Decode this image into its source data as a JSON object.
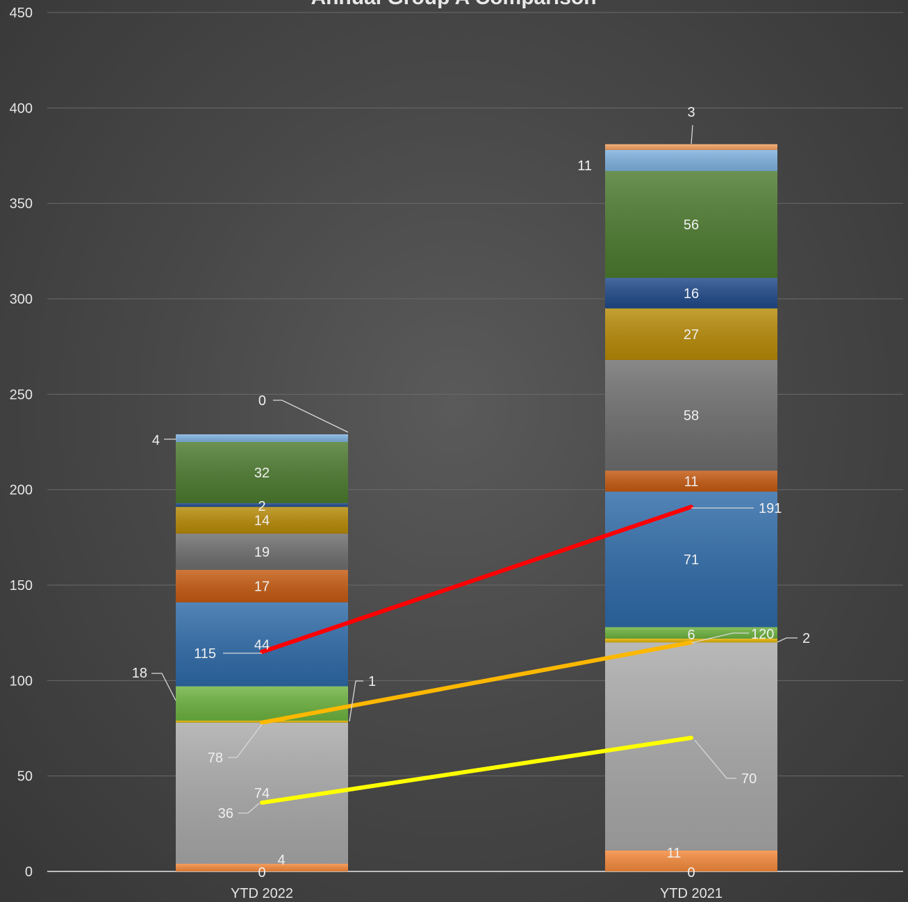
{
  "chart_data": {
    "type": "bar",
    "stacked": true,
    "title": "Annual Group A Comparison",
    "categories": [
      "YTD 2022",
      "YTD 2021"
    ],
    "ylim": [
      0,
      450
    ],
    "yticks": [
      0,
      50,
      100,
      150,
      200,
      250,
      300,
      350,
      400,
      450
    ],
    "grid": true,
    "series": [
      {
        "values": [
          0,
          0
        ],
        "color": "#e8792a"
      },
      {
        "values": [
          4,
          11
        ],
        "color": "#f58a3c"
      },
      {
        "values": [
          74,
          109
        ],
        "color": "#a9a9a9"
      },
      {
        "values": [
          1,
          2
        ],
        "color": "#e3b400"
      },
      {
        "values": [
          18,
          6
        ],
        "color": "#6db33f"
      },
      {
        "values": [
          44,
          71
        ],
        "color": "#2e6aa8"
      },
      {
        "values": [
          17,
          11
        ],
        "color": "#c55a11"
      },
      {
        "values": [
          19,
          58
        ],
        "color": "#6e6e6e"
      },
      {
        "values": [
          14,
          27
        ],
        "color": "#b78a06"
      },
      {
        "values": [
          2,
          16
        ],
        "color": "#1f4a8a"
      },
      {
        "values": [
          32,
          56
        ],
        "color": "#4c7a2e"
      },
      {
        "values": [
          4,
          11
        ],
        "color": "#7fb2e0"
      },
      {
        "values": [
          0,
          3
        ],
        "color": "#f4a261"
      }
    ],
    "lines": [
      {
        "values": [
          36,
          70
        ],
        "color": "#ffff00"
      },
      {
        "values": [
          78,
          120
        ],
        "color": "#ffb800"
      },
      {
        "values": [
          115,
          191
        ],
        "color": "#ff0000"
      }
    ]
  }
}
